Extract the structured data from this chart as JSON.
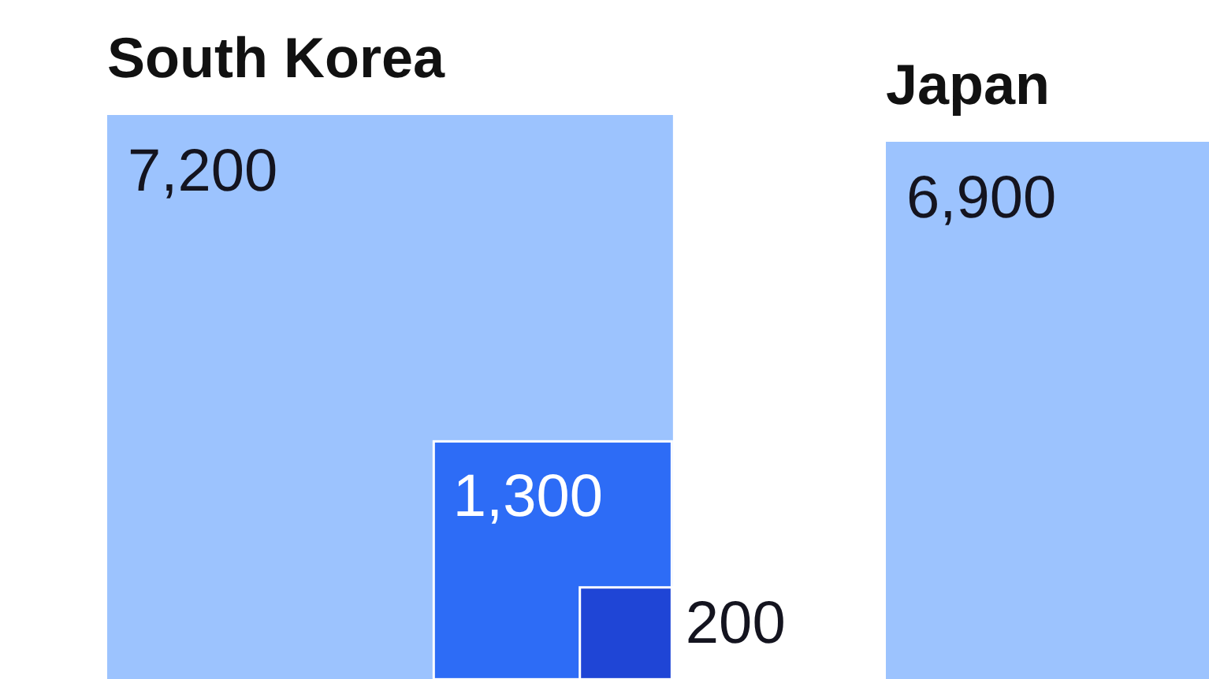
{
  "chart_data": [
    {
      "type": "other",
      "title": "South Korea",
      "values": [
        7200,
        1300,
        200
      ],
      "colors": [
        "#9cc3fe",
        "#2d6cf6",
        "#1f45d6"
      ],
      "value_labels": [
        "7,200",
        "1,300",
        "200"
      ]
    },
    {
      "type": "other",
      "title": "Japan",
      "values": [
        6900
      ],
      "colors": [
        "#9cc3fe"
      ],
      "value_labels": [
        "6,900"
      ]
    }
  ]
}
